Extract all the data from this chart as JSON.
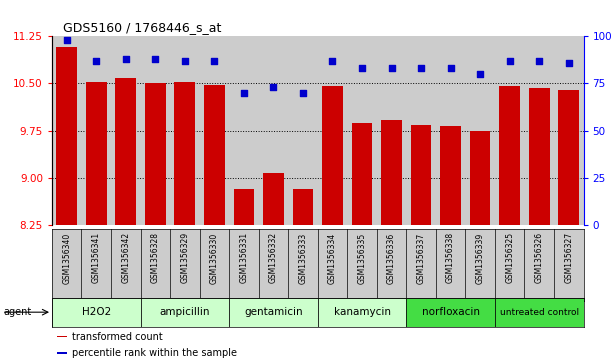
{
  "title": "GDS5160 / 1768446_s_at",
  "samples": [
    "GSM1356340",
    "GSM1356341",
    "GSM1356342",
    "GSM1356328",
    "GSM1356329",
    "GSM1356330",
    "GSM1356331",
    "GSM1356332",
    "GSM1356333",
    "GSM1356334",
    "GSM1356335",
    "GSM1356336",
    "GSM1356337",
    "GSM1356338",
    "GSM1356339",
    "GSM1356325",
    "GSM1356326",
    "GSM1356327"
  ],
  "bar_values": [
    11.08,
    10.52,
    10.58,
    10.5,
    10.52,
    10.47,
    8.83,
    9.08,
    8.83,
    10.46,
    9.87,
    9.92,
    9.84,
    9.82,
    9.75,
    10.46,
    10.43,
    10.4
  ],
  "percentile_values": [
    98,
    87,
    88,
    88,
    87,
    87,
    70,
    73,
    70,
    87,
    83,
    83,
    83,
    83,
    80,
    87,
    87,
    86
  ],
  "groups": [
    {
      "label": "H2O2",
      "start": 0,
      "end": 3,
      "light": true
    },
    {
      "label": "ampicillin",
      "start": 3,
      "end": 6,
      "light": true
    },
    {
      "label": "gentamicin",
      "start": 6,
      "end": 9,
      "light": true
    },
    {
      "label": "kanamycin",
      "start": 9,
      "end": 12,
      "light": true
    },
    {
      "label": "norfloxacin",
      "start": 12,
      "end": 15,
      "light": false
    },
    {
      "label": "untreated control",
      "start": 15,
      "end": 18,
      "light": false
    }
  ],
  "group_color_light": "#ccffcc",
  "group_color_dark": "#44dd44",
  "ylim_left": [
    8.25,
    11.25
  ],
  "ylim_right": [
    0,
    100
  ],
  "yticks_left": [
    8.25,
    9.0,
    9.75,
    10.5,
    11.25
  ],
  "yticks_right": [
    0,
    25,
    50,
    75,
    100
  ],
  "bar_color": "#cc0000",
  "dot_color": "#0000cc",
  "bar_bottom": 8.25,
  "col_bg": "#cccccc",
  "legend_labels": [
    "transformed count",
    "percentile rank within the sample"
  ],
  "legend_colors": [
    "#cc0000",
    "#0000cc"
  ]
}
